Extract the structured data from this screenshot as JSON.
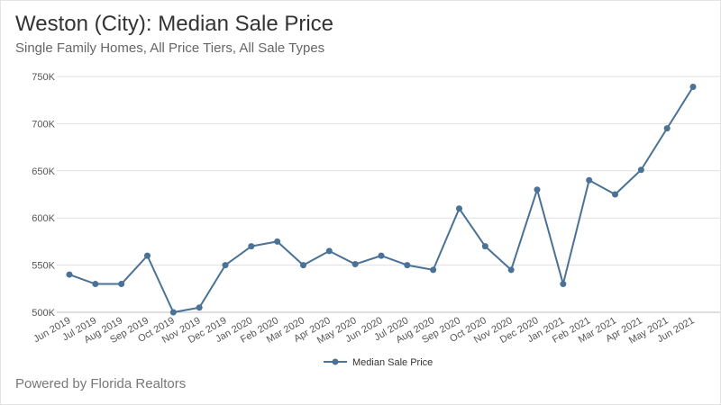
{
  "header": {
    "title": "Weston (City): Median Sale Price",
    "subtitle": "Single Family Homes, All Price Tiers, All Sale Types"
  },
  "footer": {
    "credit": "Powered by Florida Realtors"
  },
  "chart_data": {
    "type": "line",
    "title": "Weston (City): Median Sale Price",
    "subtitle": "Single Family Homes, All Price Tiers, All Sale Types",
    "xlabel": "",
    "ylabel": "",
    "categories": [
      "Jun 2019",
      "Jul 2019",
      "Aug 2019",
      "Sep 2019",
      "Oct 2019",
      "Nov 2019",
      "Dec 2019",
      "Jan 2020",
      "Feb 2020",
      "Mar 2020",
      "Apr 2020",
      "May 2020",
      "Jun 2020",
      "Jul 2020",
      "Aug 2020",
      "Sep 2020",
      "Oct 2020",
      "Nov 2020",
      "Dec 2020",
      "Jan 2021",
      "Feb 2021",
      "Mar 2021",
      "Apr 2021",
      "May 2021",
      "Jun 2021"
    ],
    "series": [
      {
        "name": "Median Sale Price",
        "color": "#4a7196",
        "values": [
          540000,
          530000,
          530000,
          560000,
          500000,
          505000,
          550000,
          570000,
          575000,
          550000,
          565000,
          551000,
          560000,
          550000,
          545000,
          610000,
          570000,
          545000,
          630000,
          530000,
          640000,
          625000,
          651000,
          695000,
          739000
        ]
      }
    ],
    "ylim": [
      500000,
      750000
    ],
    "yticks": [
      500000,
      550000,
      600000,
      650000,
      700000,
      750000
    ],
    "ytick_labels": [
      "500K",
      "550K",
      "600K",
      "650K",
      "700K",
      "750K"
    ],
    "grid": true,
    "legend": "bottom-center"
  }
}
